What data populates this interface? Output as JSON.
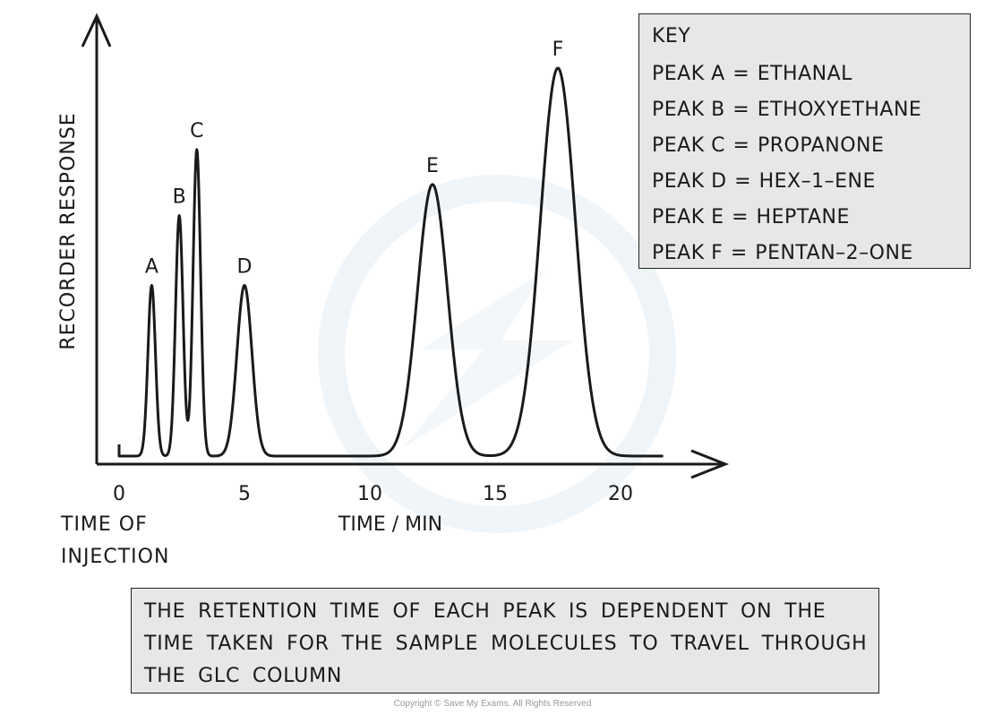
{
  "chart_data": {
    "type": "line",
    "ylabel": "RECORDER RESPONSE",
    "xlabel": "TIME / MIN",
    "xlim": [
      0,
      22
    ],
    "x_ticks": [
      0,
      5,
      10,
      15,
      20
    ],
    "origin_label_line1": "TIME OF",
    "origin_label_line2": "INJECTION",
    "grid": false,
    "peaks": [
      {
        "label": "A",
        "time": 1.3,
        "height": 0.44,
        "width": 0.15
      },
      {
        "label": "B",
        "time": 2.4,
        "height": 0.62,
        "width": 0.15
      },
      {
        "label": "C",
        "time": 3.1,
        "height": 0.79,
        "width": 0.15
      },
      {
        "label": "D",
        "time": 5.0,
        "height": 0.44,
        "width": 0.3
      },
      {
        "label": "E",
        "time": 12.5,
        "height": 0.7,
        "width": 0.6
      },
      {
        "label": "F",
        "time": 17.5,
        "height": 1.0,
        "width": 0.7
      }
    ]
  },
  "key": {
    "title": "KEY",
    "items": [
      {
        "peak": "PEAK A",
        "compound": "ETHANAL"
      },
      {
        "peak": "PEAK B",
        "compound": "ETHOXYETHANE"
      },
      {
        "peak": "PEAK C",
        "compound": "PROPANONE"
      },
      {
        "peak": "PEAK D",
        "compound": "HEX–1–ENE"
      },
      {
        "peak": "PEAK E",
        "compound": "HEPTANE"
      },
      {
        "peak": "PEAK F",
        "compound": "PENTAN–2–ONE"
      }
    ]
  },
  "note": {
    "text": "THE RETENTION TIME OF EACH PEAK IS DEPENDENT ON THE TIME TAKEN FOR THE SAMPLE MOLECULES TO TRAVEL THROUGH THE GLC COLUMN"
  },
  "copyright": "Copyright © Save My Exams. All Rights Reserved",
  "colors": {
    "line": "#1a1a1a",
    "box_fill": "#e7e7e7",
    "watermark": "#eaf1f7"
  }
}
